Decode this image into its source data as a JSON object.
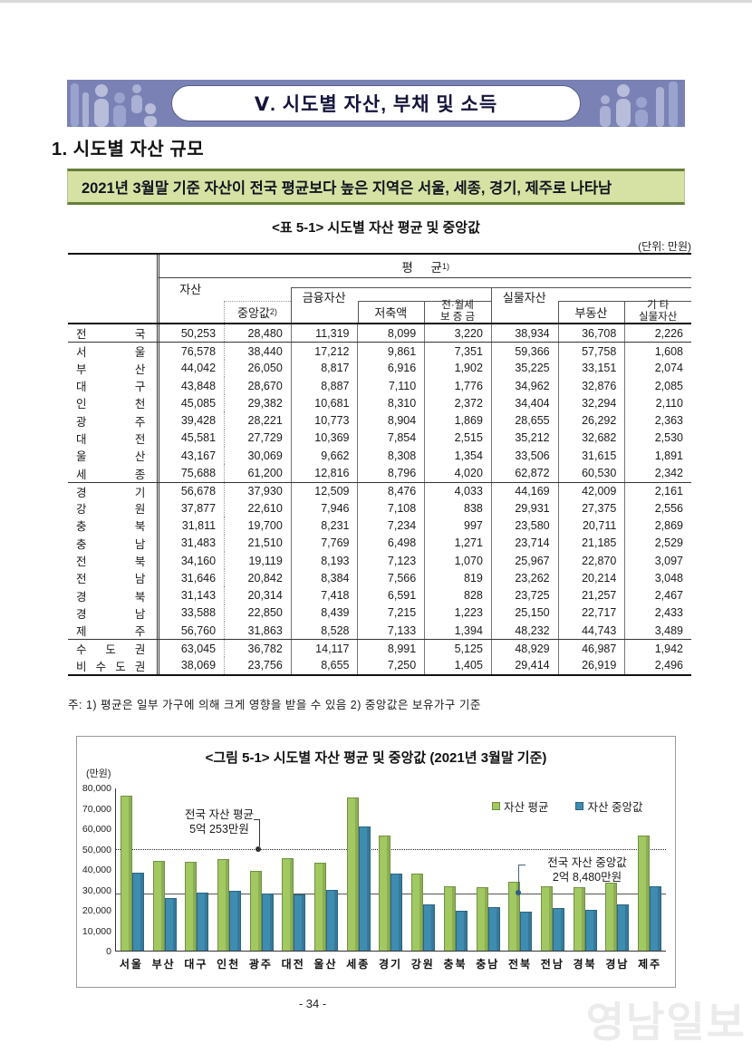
{
  "banner": {
    "title": "Ⅴ. 시도별 자산, 부채 및 소득"
  },
  "section": {
    "heading": "1. 시도별 자산 규모",
    "highlight": "2021년 3월말 기준 자산이 전국 평균보다 높은 지역은 서울, 세종, 경기, 제주로 나타남"
  },
  "table": {
    "title": "<표 5-1> 시도별 자산 평균 및 중앙값",
    "unit_label": "(단위: 만원)",
    "header": {
      "group": "평 균",
      "group_sup": "1)",
      "median_sup": "2)",
      "cols": [
        "자산",
        "중앙값",
        "금융자산",
        "저축액",
        "전·월세\n보 증 금",
        "실물자산",
        "부동산",
        "기 타\n실물자산"
      ]
    },
    "rows": [
      {
        "region": "전국",
        "sep": false,
        "values": [
          "50,253",
          "28,480",
          "11,319",
          "8,099",
          "3,220",
          "38,934",
          "36,708",
          "2,226"
        ]
      },
      {
        "region": "서울",
        "sep": true,
        "values": [
          "76,578",
          "38,440",
          "17,212",
          "9,861",
          "7,351",
          "59,366",
          "57,758",
          "1,608"
        ]
      },
      {
        "region": "부산",
        "sep": false,
        "values": [
          "44,042",
          "26,050",
          "8,817",
          "6,916",
          "1,902",
          "35,225",
          "33,151",
          "2,074"
        ]
      },
      {
        "region": "대구",
        "sep": false,
        "values": [
          "43,848",
          "28,670",
          "8,887",
          "7,110",
          "1,776",
          "34,962",
          "32,876",
          "2,085"
        ]
      },
      {
        "region": "인천",
        "sep": false,
        "values": [
          "45,085",
          "29,382",
          "10,681",
          "8,310",
          "2,372",
          "34,404",
          "32,294",
          "2,110"
        ]
      },
      {
        "region": "광주",
        "sep": false,
        "values": [
          "39,428",
          "28,221",
          "10,773",
          "8,904",
          "1,869",
          "28,655",
          "26,292",
          "2,363"
        ]
      },
      {
        "region": "대전",
        "sep": false,
        "values": [
          "45,581",
          "27,729",
          "10,369",
          "7,854",
          "2,515",
          "35,212",
          "32,682",
          "2,530"
        ]
      },
      {
        "region": "울산",
        "sep": false,
        "values": [
          "43,167",
          "30,069",
          "9,662",
          "8,308",
          "1,354",
          "33,506",
          "31,615",
          "1,891"
        ]
      },
      {
        "region": "세종",
        "sep": false,
        "values": [
          "75,688",
          "61,200",
          "12,816",
          "8,796",
          "4,020",
          "62,872",
          "60,530",
          "2,342"
        ]
      },
      {
        "region": "경기",
        "sep": true,
        "values": [
          "56,678",
          "37,930",
          "12,509",
          "8,476",
          "4,033",
          "44,169",
          "42,009",
          "2,161"
        ]
      },
      {
        "region": "강원",
        "sep": false,
        "values": [
          "37,877",
          "22,610",
          "7,946",
          "7,108",
          "838",
          "29,931",
          "27,375",
          "2,556"
        ]
      },
      {
        "region": "충북",
        "sep": false,
        "values": [
          "31,811",
          "19,700",
          "8,231",
          "7,234",
          "997",
          "23,580",
          "20,711",
          "2,869"
        ]
      },
      {
        "region": "충남",
        "sep": false,
        "values": [
          "31,483",
          "21,510",
          "7,769",
          "6,498",
          "1,271",
          "23,714",
          "21,185",
          "2,529"
        ]
      },
      {
        "region": "전북",
        "sep": false,
        "values": [
          "34,160",
          "19,119",
          "8,193",
          "7,123",
          "1,070",
          "25,967",
          "22,870",
          "3,097"
        ]
      },
      {
        "region": "전남",
        "sep": false,
        "values": [
          "31,646",
          "20,842",
          "8,384",
          "7,566",
          "819",
          "23,262",
          "20,214",
          "3,048"
        ]
      },
      {
        "region": "경북",
        "sep": false,
        "values": [
          "31,143",
          "20,314",
          "7,418",
          "6,591",
          "828",
          "23,725",
          "21,257",
          "2,467"
        ]
      },
      {
        "region": "경남",
        "sep": false,
        "values": [
          "33,588",
          "22,850",
          "8,439",
          "7,215",
          "1,223",
          "25,150",
          "22,717",
          "2,433"
        ]
      },
      {
        "region": "제주",
        "sep": false,
        "values": [
          "56,760",
          "31,863",
          "8,528",
          "7,133",
          "1,394",
          "48,232",
          "44,743",
          "3,489"
        ]
      },
      {
        "region": "수도권",
        "sep": true,
        "values": [
          "63,045",
          "36,782",
          "14,117",
          "8,991",
          "5,125",
          "48,929",
          "46,987",
          "1,942"
        ]
      },
      {
        "region": "비수도권",
        "sep": false,
        "values": [
          "38,069",
          "23,756",
          "8,655",
          "7,250",
          "1,405",
          "29,414",
          "26,919",
          "2,496"
        ]
      }
    ],
    "note": "주: 1) 평균은 일부 가구에 의해 크게 영향을 받을 수 있음  2) 중앙값은 보유가구 기준"
  },
  "chart_data": {
    "type": "bar",
    "title": "<그림 5-1> 시도별 자산 평균 및 중앙값 (2021년 3월말 기준)",
    "unit_label": "(만원)",
    "categories": [
      "서울",
      "부산",
      "대구",
      "인천",
      "광주",
      "대전",
      "울산",
      "세종",
      "경기",
      "강원",
      "충북",
      "충남",
      "전북",
      "전남",
      "경북",
      "경남",
      "제주"
    ],
    "series": [
      {
        "name": "자산 평균",
        "color": "#a1c861",
        "values": [
          76578,
          44042,
          43848,
          45085,
          39428,
          45581,
          43167,
          75688,
          56678,
          37877,
          31811,
          31483,
          34160,
          31646,
          31143,
          33588,
          56760
        ]
      },
      {
        "name": "자산 중앙값",
        "color": "#3e8cb0",
        "values": [
          38440,
          26050,
          28670,
          29382,
          28221,
          27729,
          30069,
          61200,
          37930,
          22610,
          19700,
          21510,
          19119,
          20842,
          20314,
          22850,
          31863
        ]
      }
    ],
    "ylim": [
      0,
      80000
    ],
    "ytick_step": 10000,
    "grid": false,
    "legend_position": "top-right",
    "reference_lines": [
      {
        "value": 50253,
        "style": "dotted",
        "label": "전국 자산 평균",
        "label2": "5억 253만원"
      },
      {
        "value": 28480,
        "style": "solid",
        "label": "전국 자산 중앙값",
        "label2": "2억 8,480만원"
      }
    ]
  },
  "footer": {
    "page_number": "- 34 -",
    "watermark": "영남일보"
  }
}
